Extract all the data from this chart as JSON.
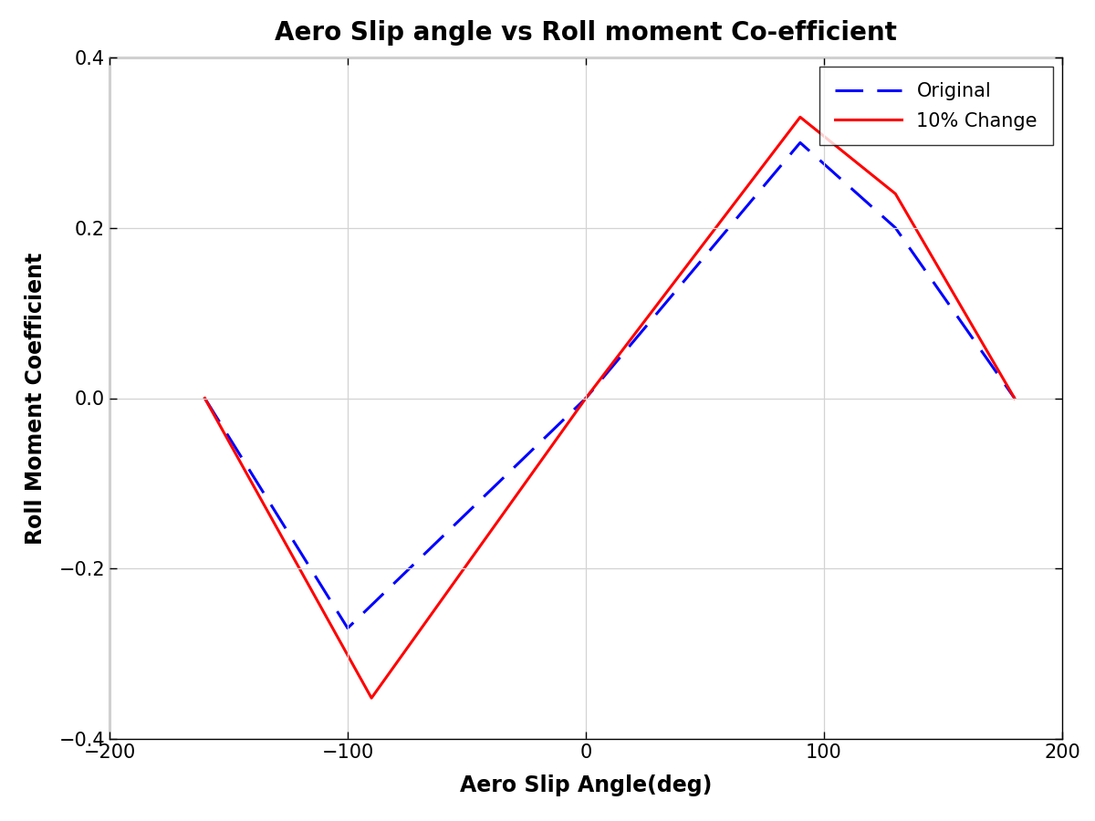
{
  "title": "Aero Slip angle vs Roll moment Co-efficient",
  "xlabel": "Aero Slip Angle(deg)",
  "ylabel": "Roll Moment Coefficient",
  "xlim": [
    -200,
    200
  ],
  "ylim": [
    -0.4,
    0.4
  ],
  "xticks": [
    -200,
    -100,
    0,
    100,
    200
  ],
  "yticks": [
    -0.4,
    -0.2,
    0,
    0.2,
    0.4
  ],
  "original_x": [
    -160,
    -100,
    0,
    90,
    130,
    180
  ],
  "original_y": [
    0,
    -0.27,
    0,
    0.3,
    0.2,
    0
  ],
  "changed_x": [
    -160,
    -90,
    0,
    90,
    130,
    180
  ],
  "changed_y": [
    0,
    -0.352,
    0,
    0.33,
    0.24,
    0
  ],
  "original_color": "#0000FF",
  "changed_color": "#FF0000",
  "original_label": "Original",
  "changed_label": "10% Change",
  "background_color": "#ffffff",
  "axes_bg_color": "#ffffff",
  "grid_color": "#d3d3d3",
  "title_fontsize": 20,
  "label_fontsize": 17,
  "tick_fontsize": 15,
  "legend_fontsize": 15,
  "line_width": 2.2,
  "dashes_on": 10,
  "dashes_off": 5
}
